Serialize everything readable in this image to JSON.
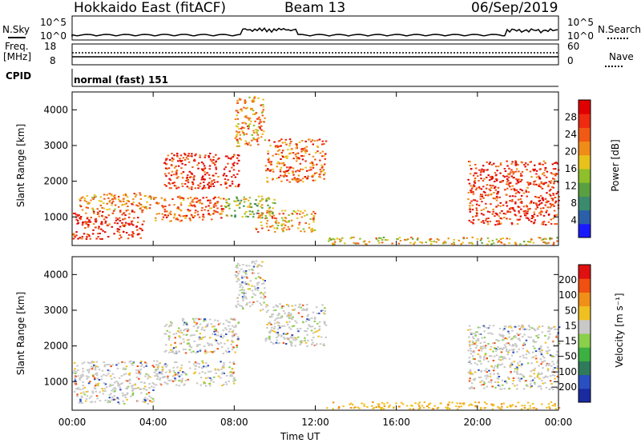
{
  "header": {
    "station": "Hokkaido East (fitACF)",
    "beam": "Beam 13",
    "date": "06/Sep/2019"
  },
  "nsky": {
    "label": "N.Sky",
    "tick_top": "10^5",
    "tick_bottom": "10^0",
    "right_label": "N.Search",
    "right_tick_top": "10^5",
    "right_tick_bottom": "10^0"
  },
  "freq": {
    "label_line1": "Freq.",
    "label_line2": "[MHz]",
    "tick_top": "18",
    "tick_bottom": "8",
    "right_label": "Nave",
    "right_tick_top": "60",
    "right_tick_bottom": "0"
  },
  "cpid": {
    "label": "CPID",
    "value": "normal (fast) 151"
  },
  "chart_data": [
    {
      "type": "heatmap",
      "name": "Power",
      "ylabel": "Slant Range [km]",
      "xlabel": "Time UT",
      "xlim": [
        0,
        24
      ],
      "ylim": [
        200,
        4500
      ],
      "yticks": [
        "1000",
        "2000",
        "3000",
        "4000"
      ],
      "xticks": [
        "00:00",
        "04:00",
        "08:00",
        "12:00",
        "16:00",
        "20:00",
        "00:00"
      ],
      "colorbar": {
        "label": "Power [dB]",
        "ticks": [
          "4",
          "8",
          "12",
          "16",
          "20",
          "24",
          "28"
        ],
        "colors": [
          "#1a1aff",
          "#2b5fa8",
          "#3c8a6e",
          "#5aa040",
          "#8fbf2a",
          "#e8c21a",
          "#f08c18",
          "#f05a14",
          "#ee2a10",
          "#e00000"
        ]
      },
      "regions": [
        {
          "t0": 0.0,
          "t1": 3.5,
          "r0": 400,
          "r1": 1200,
          "level": 26
        },
        {
          "t0": 0.3,
          "t1": 4.0,
          "r0": 1200,
          "r1": 1700,
          "level": 20
        },
        {
          "t0": 4.0,
          "t1": 7.5,
          "r0": 900,
          "r1": 1600,
          "level": 22
        },
        {
          "t0": 4.5,
          "t1": 8.2,
          "r0": 1800,
          "r1": 2800,
          "level": 24
        },
        {
          "t0": 7.5,
          "t1": 10.0,
          "r0": 1000,
          "r1": 1600,
          "level": 14
        },
        {
          "t0": 8.0,
          "t1": 9.5,
          "r0": 3000,
          "r1": 4400,
          "level": 20
        },
        {
          "t0": 9.5,
          "t1": 12.5,
          "r0": 2000,
          "r1": 3200,
          "level": 22
        },
        {
          "t0": 9.0,
          "t1": 12.0,
          "r0": 600,
          "r1": 1200,
          "level": 20
        },
        {
          "t0": 12.5,
          "t1": 24.0,
          "r0": 250,
          "r1": 450,
          "level": 16
        },
        {
          "t0": 19.5,
          "t1": 24.0,
          "r0": 800,
          "r1": 2600,
          "level": 24
        }
      ]
    },
    {
      "type": "heatmap",
      "name": "Velocity",
      "ylabel": "Slant Range [km]",
      "xlabel": "Time UT",
      "xlim": [
        0,
        24
      ],
      "ylim": [
        200,
        4500
      ],
      "yticks": [
        "1000",
        "2000",
        "3000",
        "4000"
      ],
      "xticks": [
        "00:00",
        "04:00",
        "08:00",
        "12:00",
        "16:00",
        "20:00",
        "00:00"
      ],
      "colorbar": {
        "label": "Velocity [m s⁻¹]",
        "ticks": [
          "200",
          "100",
          "50",
          "15",
          "−15",
          "−50",
          "−100",
          "−200"
        ],
        "colors": [
          "#1a2aa0",
          "#2a4fc0",
          "#2f7a5a",
          "#3cb040",
          "#8ad04a",
          "#c8c8c8",
          "#f0c020",
          "#f09018",
          "#f05010",
          "#e01010"
        ]
      },
      "regions": [
        {
          "t0": 0.0,
          "t1": 4.0,
          "r0": 400,
          "r1": 1600,
          "level": 0
        },
        {
          "t0": 4.0,
          "t1": 8.0,
          "r0": 900,
          "r1": 1600,
          "level": 0
        },
        {
          "t0": 4.5,
          "t1": 8.2,
          "r0": 1800,
          "r1": 2800,
          "level": 0
        },
        {
          "t0": 8.0,
          "t1": 9.5,
          "r0": 3000,
          "r1": 4400,
          "level": 0
        },
        {
          "t0": 9.5,
          "t1": 12.5,
          "r0": 2000,
          "r1": 3200,
          "level": 0
        },
        {
          "t0": 12.5,
          "t1": 24.0,
          "r0": 250,
          "r1": 450,
          "level": -40
        },
        {
          "t0": 19.5,
          "t1": 24.0,
          "r0": 800,
          "r1": 2600,
          "level": 0
        }
      ]
    }
  ]
}
